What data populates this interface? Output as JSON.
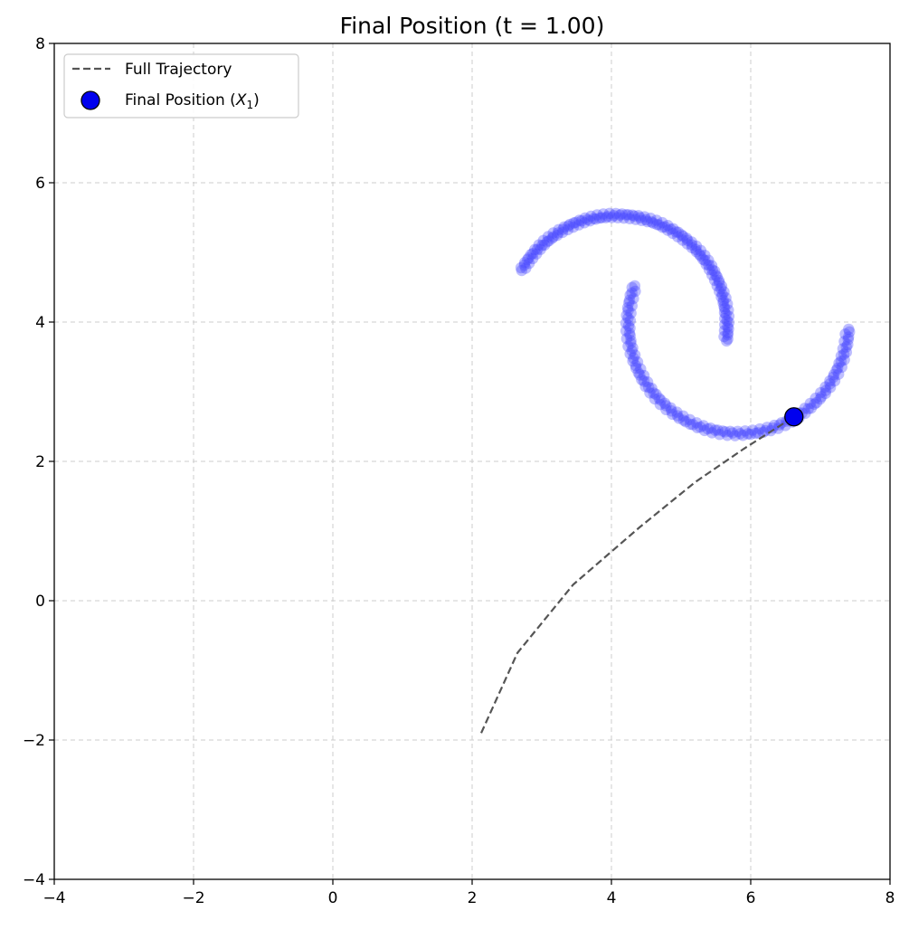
{
  "chart_data": {
    "type": "scatter",
    "title": "Final Position (t = 1.00)",
    "xlabel": "",
    "ylabel": "",
    "xlim": [
      -4,
      8
    ],
    "ylim": [
      -4,
      8
    ],
    "grid": true,
    "legend_position": "top-left",
    "xticks": [
      "−4",
      "−2",
      "0",
      "2",
      "4",
      "6",
      "8"
    ],
    "yticks": [
      "−4",
      "−2",
      "0",
      "2",
      "4",
      "6",
      "8"
    ],
    "colors": {
      "moons": "#4444ff",
      "trajectory": "#555555",
      "final_point": "#0000ee",
      "grid": "#cccccc"
    },
    "series": [
      {
        "name": "Full Trajectory",
        "kind": "line",
        "style": "dashed",
        "points": [
          [
            2.13,
            -1.9
          ],
          [
            2.65,
            -0.75
          ],
          [
            3.45,
            0.23
          ],
          [
            4.4,
            1.05
          ],
          [
            5.2,
            1.7
          ],
          [
            5.9,
            2.18
          ],
          [
            6.62,
            2.64
          ]
        ]
      },
      {
        "name": "Final Position (X1)",
        "legend_label_main": "Final Position (",
        "legend_label_var": "X",
        "legend_label_sub": "1",
        "legend_label_end": ")",
        "kind": "point",
        "points": [
          [
            6.62,
            2.64
          ]
        ]
      }
    ],
    "moons": {
      "upper": {
        "center": [
          4.08,
          3.95
        ],
        "radius": 1.58,
        "angle_start_deg": 150,
        "angle_end_deg": -8
      },
      "lower": {
        "center": [
          5.82,
          3.98
        ],
        "radius": 1.58,
        "angle_start_deg": 160,
        "angle_end_deg": 357
      },
      "samples_per_moon": 150,
      "opacity": 0.35
    }
  }
}
